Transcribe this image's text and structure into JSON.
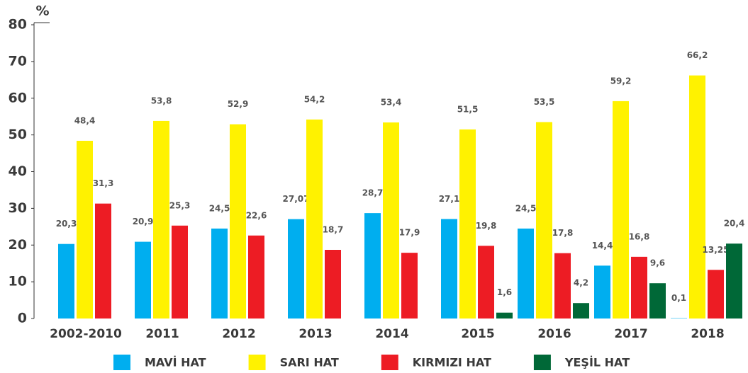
{
  "chart_data": {
    "type": "bar",
    "y_label": "%",
    "categories": [
      "2002-2010",
      "2011",
      "2012",
      "2013",
      "2014",
      "2015",
      "2016",
      "2017",
      "2018"
    ],
    "series": [
      {
        "name": "MAVİ HAT",
        "color": "#00aeef",
        "values": [
          20.3,
          20.9,
          24.5,
          27.07,
          28.7,
          27.1,
          24.5,
          14.4,
          0.1
        ],
        "value_labels": [
          "20,3",
          "20,9",
          "24,5",
          "27,07",
          "28,7",
          "27,1",
          "24,5",
          "14,4",
          "0,1"
        ]
      },
      {
        "name": "SARI HAT",
        "color": "#fff200",
        "values": [
          48.4,
          53.8,
          52.9,
          54.2,
          53.4,
          51.5,
          53.5,
          59.2,
          66.2
        ],
        "value_labels": [
          "48,4",
          "53,8",
          "52,9",
          "54,2",
          "53,4",
          "51,5",
          "53,5",
          "59,2",
          "66,2"
        ]
      },
      {
        "name": "KIRMIZI HAT",
        "color": "#ed1c24",
        "values": [
          31.3,
          25.3,
          22.6,
          18.7,
          17.9,
          19.8,
          17.8,
          16.8,
          13.25
        ],
        "value_labels": [
          "31,3",
          "25,3",
          "22,6",
          "18,7",
          "17,9",
          "19,8",
          "17,8",
          "16,8",
          "13,25"
        ]
      },
      {
        "name": "YEŞİL HAT",
        "color": "#006837",
        "values": [
          null,
          null,
          null,
          null,
          null,
          1.6,
          4.2,
          9.6,
          20.4
        ],
        "value_labels": [
          null,
          null,
          null,
          null,
          null,
          "1,6",
          "4,2",
          "9,6",
          "20,4"
        ]
      }
    ],
    "ylim": [
      0,
      80
    ],
    "yticks": [
      0,
      10,
      20,
      30,
      40,
      50,
      60,
      70,
      80
    ],
    "grid": false
  }
}
